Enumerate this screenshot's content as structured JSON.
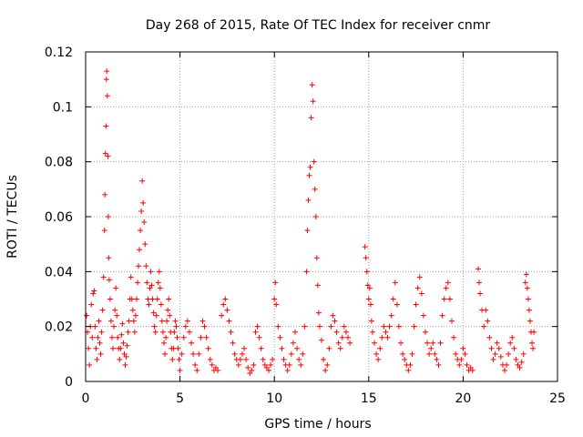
{
  "chart_data": {
    "type": "scatter",
    "title": "Day 268 of 2015, Rate Of TEC Index for receiver cnmr",
    "xlabel": "GPS time / hours",
    "ylabel": "ROTI / TECUs",
    "xlim": [
      0,
      25
    ],
    "ylim": [
      0,
      0.12
    ],
    "xticks": [
      0,
      5,
      10,
      15,
      20,
      25
    ],
    "yticks": [
      0,
      0.02,
      0.04,
      0.06,
      0.08,
      0.1,
      0.12
    ],
    "xtick_labels": [
      "0",
      "5",
      "10",
      "15",
      "20",
      "25"
    ],
    "ytick_labels": [
      "0",
      "0.02",
      "0.04",
      "0.06",
      "0.08",
      "0.1",
      "0.12"
    ],
    "grid": true,
    "marker": "+",
    "color": "#ff0000",
    "series": [
      {
        "name": "ROTI",
        "points": [
          [
            0.05,
            0.024
          ],
          [
            0.1,
            0.018
          ],
          [
            0.15,
            0.012
          ],
          [
            0.2,
            0.006
          ],
          [
            0.25,
            0.02
          ],
          [
            0.3,
            0.028
          ],
          [
            0.35,
            0.016
          ],
          [
            0.4,
            0.032
          ],
          [
            0.45,
            0.033
          ],
          [
            0.5,
            0.02
          ],
          [
            0.55,
            0.012
          ],
          [
            0.6,
            0.008
          ],
          [
            0.65,
            0.016
          ],
          [
            0.7,
            0.022
          ],
          [
            0.75,
            0.014
          ],
          [
            0.8,
            0.01
          ],
          [
            0.85,
            0.018
          ],
          [
            0.9,
            0.026
          ],
          [
            0.95,
            0.038
          ],
          [
            1.0,
            0.055
          ],
          [
            1.02,
            0.068
          ],
          [
            1.05,
            0.083
          ],
          [
            1.08,
            0.093
          ],
          [
            1.1,
            0.11
          ],
          [
            1.12,
            0.113
          ],
          [
            1.15,
            0.104
          ],
          [
            1.18,
            0.082
          ],
          [
            1.2,
            0.06
          ],
          [
            1.22,
            0.045
          ],
          [
            1.25,
            0.037
          ],
          [
            1.3,
            0.03
          ],
          [
            1.35,
            0.022
          ],
          [
            1.4,
            0.016
          ],
          [
            1.45,
            0.012
          ],
          [
            1.5,
            0.02
          ],
          [
            1.55,
            0.026
          ],
          [
            1.6,
            0.034
          ],
          [
            1.65,
            0.024
          ],
          [
            1.7,
            0.016
          ],
          [
            1.75,
            0.012
          ],
          [
            1.8,
            0.008
          ],
          [
            1.85,
            0.012
          ],
          [
            1.9,
            0.017
          ],
          [
            1.95,
            0.021
          ],
          [
            2.0,
            0.014
          ],
          [
            2.05,
            0.01
          ],
          [
            2.1,
            0.006
          ],
          [
            2.15,
            0.009
          ],
          [
            2.2,
            0.013
          ],
          [
            2.25,
            0.018
          ],
          [
            2.3,
            0.022
          ],
          [
            2.35,
            0.03
          ],
          [
            2.4,
            0.038
          ],
          [
            2.45,
            0.03
          ],
          [
            2.5,
            0.026
          ],
          [
            2.55,
            0.022
          ],
          [
            2.6,
            0.018
          ],
          [
            2.65,
            0.024
          ],
          [
            2.7,
            0.03
          ],
          [
            2.75,
            0.036
          ],
          [
            2.8,
            0.042
          ],
          [
            2.85,
            0.048
          ],
          [
            2.9,
            0.055
          ],
          [
            2.95,
            0.062
          ],
          [
            3.0,
            0.073
          ],
          [
            3.05,
            0.065
          ],
          [
            3.1,
            0.058
          ],
          [
            3.15,
            0.05
          ],
          [
            3.2,
            0.042
          ],
          [
            3.25,
            0.036
          ],
          [
            3.3,
            0.03
          ],
          [
            3.35,
            0.028
          ],
          [
            3.4,
            0.034
          ],
          [
            3.45,
            0.04
          ],
          [
            3.5,
            0.035
          ],
          [
            3.55,
            0.03
          ],
          [
            3.6,
            0.025
          ],
          [
            3.65,
            0.02
          ],
          [
            3.7,
            0.018
          ],
          [
            3.75,
            0.024
          ],
          [
            3.8,
            0.03
          ],
          [
            3.85,
            0.036
          ],
          [
            3.9,
            0.04
          ],
          [
            3.95,
            0.034
          ],
          [
            4.0,
            0.028
          ],
          [
            4.05,
            0.022
          ],
          [
            4.1,
            0.018
          ],
          [
            4.15,
            0.014
          ],
          [
            4.2,
            0.01
          ],
          [
            4.25,
            0.016
          ],
          [
            4.3,
            0.022
          ],
          [
            4.35,
            0.026
          ],
          [
            4.4,
            0.03
          ],
          [
            4.45,
            0.024
          ],
          [
            4.5,
            0.018
          ],
          [
            4.55,
            0.012
          ],
          [
            4.6,
            0.008
          ],
          [
            4.65,
            0.012
          ],
          [
            4.7,
            0.018
          ],
          [
            4.75,
            0.022
          ],
          [
            4.8,
            0.02
          ],
          [
            4.85,
            0.016
          ],
          [
            4.9,
            0.012
          ],
          [
            4.95,
            0.008
          ],
          [
            5.0,
            0.004
          ],
          [
            5.1,
            0.01
          ],
          [
            5.2,
            0.016
          ],
          [
            5.3,
            0.02
          ],
          [
            5.4,
            0.022
          ],
          [
            5.5,
            0.018
          ],
          [
            5.6,
            0.014
          ],
          [
            5.7,
            0.01
          ],
          [
            5.8,
            0.006
          ],
          [
            5.9,
            0.004
          ],
          [
            6.0,
            0.01
          ],
          [
            6.1,
            0.016
          ],
          [
            6.2,
            0.022
          ],
          [
            6.3,
            0.02
          ],
          [
            6.4,
            0.016
          ],
          [
            6.5,
            0.012
          ],
          [
            6.6,
            0.008
          ],
          [
            6.7,
            0.006
          ],
          [
            6.8,
            0.004
          ],
          [
            6.9,
            0.005
          ],
          [
            7.0,
            0.004
          ],
          [
            7.2,
            0.024
          ],
          [
            7.3,
            0.028
          ],
          [
            7.4,
            0.03
          ],
          [
            7.5,
            0.026
          ],
          [
            7.6,
            0.022
          ],
          [
            7.7,
            0.018
          ],
          [
            7.8,
            0.014
          ],
          [
            7.9,
            0.01
          ],
          [
            8.0,
            0.008
          ],
          [
            8.1,
            0.006
          ],
          [
            8.2,
            0.008
          ],
          [
            8.3,
            0.01
          ],
          [
            8.4,
            0.012
          ],
          [
            8.5,
            0.008
          ],
          [
            8.6,
            0.005
          ],
          [
            8.7,
            0.003
          ],
          [
            8.8,
            0.004
          ],
          [
            8.9,
            0.006
          ],
          [
            9.0,
            0.018
          ],
          [
            9.1,
            0.02
          ],
          [
            9.2,
            0.016
          ],
          [
            9.3,
            0.012
          ],
          [
            9.4,
            0.008
          ],
          [
            9.5,
            0.006
          ],
          [
            9.6,
            0.005
          ],
          [
            9.7,
            0.004
          ],
          [
            9.8,
            0.006
          ],
          [
            9.9,
            0.008
          ],
          [
            10.0,
            0.03
          ],
          [
            10.05,
            0.036
          ],
          [
            10.1,
            0.028
          ],
          [
            10.2,
            0.02
          ],
          [
            10.3,
            0.016
          ],
          [
            10.4,
            0.012
          ],
          [
            10.5,
            0.008
          ],
          [
            10.6,
            0.006
          ],
          [
            10.7,
            0.004
          ],
          [
            10.8,
            0.006
          ],
          [
            10.9,
            0.01
          ],
          [
            11.0,
            0.014
          ],
          [
            11.1,
            0.018
          ],
          [
            11.2,
            0.012
          ],
          [
            11.3,
            0.008
          ],
          [
            11.4,
            0.006
          ],
          [
            11.5,
            0.01
          ],
          [
            11.6,
            0.02
          ],
          [
            11.7,
            0.04
          ],
          [
            11.75,
            0.055
          ],
          [
            11.8,
            0.066
          ],
          [
            11.85,
            0.075
          ],
          [
            11.9,
            0.078
          ],
          [
            11.95,
            0.096
          ],
          [
            12.0,
            0.108
          ],
          [
            12.05,
            0.102
          ],
          [
            12.1,
            0.08
          ],
          [
            12.15,
            0.07
          ],
          [
            12.2,
            0.06
          ],
          [
            12.25,
            0.045
          ],
          [
            12.3,
            0.035
          ],
          [
            12.35,
            0.025
          ],
          [
            12.4,
            0.02
          ],
          [
            12.5,
            0.015
          ],
          [
            12.6,
            0.008
          ],
          [
            12.7,
            0.004
          ],
          [
            12.8,
            0.006
          ],
          [
            12.9,
            0.012
          ],
          [
            13.0,
            0.02
          ],
          [
            13.1,
            0.024
          ],
          [
            13.2,
            0.022
          ],
          [
            13.3,
            0.018
          ],
          [
            13.4,
            0.014
          ],
          [
            13.5,
            0.012
          ],
          [
            13.6,
            0.016
          ],
          [
            13.7,
            0.02
          ],
          [
            13.8,
            0.018
          ],
          [
            13.9,
            0.016
          ],
          [
            14.0,
            0.014
          ],
          [
            14.8,
            0.049
          ],
          [
            14.85,
            0.045
          ],
          [
            14.9,
            0.04
          ],
          [
            14.95,
            0.035
          ],
          [
            15.0,
            0.03
          ],
          [
            15.05,
            0.034
          ],
          [
            15.1,
            0.028
          ],
          [
            15.15,
            0.022
          ],
          [
            15.2,
            0.018
          ],
          [
            15.3,
            0.014
          ],
          [
            15.4,
            0.01
          ],
          [
            15.5,
            0.008
          ],
          [
            15.6,
            0.012
          ],
          [
            15.7,
            0.016
          ],
          [
            15.8,
            0.02
          ],
          [
            15.9,
            0.018
          ],
          [
            16.0,
            0.016
          ],
          [
            16.1,
            0.02
          ],
          [
            16.2,
            0.024
          ],
          [
            16.3,
            0.03
          ],
          [
            16.4,
            0.036
          ],
          [
            16.5,
            0.028
          ],
          [
            16.6,
            0.02
          ],
          [
            16.7,
            0.014
          ],
          [
            16.8,
            0.01
          ],
          [
            16.9,
            0.008
          ],
          [
            17.0,
            0.006
          ],
          [
            17.1,
            0.004
          ],
          [
            17.2,
            0.006
          ],
          [
            17.3,
            0.01
          ],
          [
            17.4,
            0.02
          ],
          [
            17.5,
            0.028
          ],
          [
            17.6,
            0.034
          ],
          [
            17.7,
            0.038
          ],
          [
            17.8,
            0.032
          ],
          [
            17.9,
            0.024
          ],
          [
            18.0,
            0.018
          ],
          [
            18.1,
            0.014
          ],
          [
            18.2,
            0.01
          ],
          [
            18.3,
            0.012
          ],
          [
            18.4,
            0.014
          ],
          [
            18.5,
            0.01
          ],
          [
            18.6,
            0.008
          ],
          [
            18.7,
            0.006
          ],
          [
            18.8,
            0.014
          ],
          [
            18.9,
            0.024
          ],
          [
            19.0,
            0.03
          ],
          [
            19.1,
            0.034
          ],
          [
            19.2,
            0.036
          ],
          [
            19.3,
            0.03
          ],
          [
            19.4,
            0.022
          ],
          [
            19.5,
            0.016
          ],
          [
            19.6,
            0.01
          ],
          [
            19.7,
            0.008
          ],
          [
            19.8,
            0.006
          ],
          [
            19.9,
            0.008
          ],
          [
            20.0,
            0.012
          ],
          [
            20.1,
            0.01
          ],
          [
            20.2,
            0.006
          ],
          [
            20.3,
            0.004
          ],
          [
            20.4,
            0.005
          ],
          [
            20.5,
            0.004
          ],
          [
            20.8,
            0.041
          ],
          [
            20.85,
            0.036
          ],
          [
            20.9,
            0.032
          ],
          [
            21.0,
            0.026
          ],
          [
            21.1,
            0.02
          ],
          [
            21.2,
            0.026
          ],
          [
            21.3,
            0.022
          ],
          [
            21.4,
            0.016
          ],
          [
            21.5,
            0.012
          ],
          [
            21.6,
            0.008
          ],
          [
            21.7,
            0.01
          ],
          [
            21.8,
            0.014
          ],
          [
            21.9,
            0.012
          ],
          [
            22.0,
            0.009
          ],
          [
            22.1,
            0.006
          ],
          [
            22.2,
            0.004
          ],
          [
            22.3,
            0.006
          ],
          [
            22.4,
            0.01
          ],
          [
            22.5,
            0.014
          ],
          [
            22.6,
            0.016
          ],
          [
            22.7,
            0.012
          ],
          [
            22.8,
            0.008
          ],
          [
            22.9,
            0.006
          ],
          [
            23.0,
            0.005
          ],
          [
            23.1,
            0.007
          ],
          [
            23.2,
            0.01
          ],
          [
            23.3,
            0.036
          ],
          [
            23.35,
            0.039
          ],
          [
            23.4,
            0.034
          ],
          [
            23.45,
            0.03
          ],
          [
            23.5,
            0.026
          ],
          [
            23.55,
            0.022
          ],
          [
            23.6,
            0.018
          ],
          [
            23.65,
            0.014
          ],
          [
            23.7,
            0.012
          ],
          [
            23.75,
            0.018
          ]
        ]
      }
    ]
  }
}
